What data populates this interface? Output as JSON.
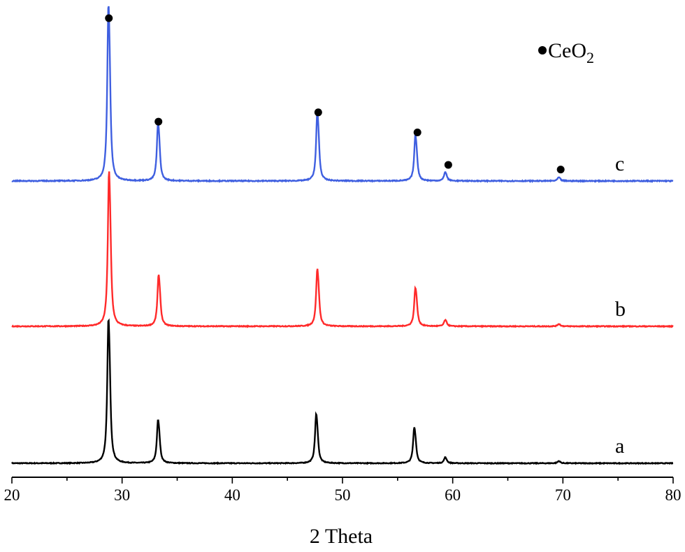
{
  "chart_data": {
    "type": "line",
    "title": "",
    "xlabel": "2 Theta",
    "ylabel": "",
    "xlim": [
      20,
      80
    ],
    "x_ticks": [
      "20",
      "30",
      "40",
      "50",
      "60",
      "70",
      "80"
    ],
    "grid": false,
    "y_axis_visible": false,
    "legend": {
      "marker": "filled-circle",
      "label_main": "CeO",
      "label_subscript": "2",
      "placement": "top-right"
    },
    "peak_markers": {
      "series": "c",
      "marker": "filled-circle",
      "x": [
        28.8,
        33.3,
        47.8,
        56.8,
        59.6,
        69.8
      ]
    },
    "series": [
      {
        "name": "a",
        "color": "#000000",
        "peaks": [
          {
            "x": 28.75,
            "height": 1.0
          },
          {
            "x": 33.25,
            "height": 0.3
          },
          {
            "x": 47.6,
            "height": 0.34
          },
          {
            "x": 56.5,
            "height": 0.25
          },
          {
            "x": 59.3,
            "height": 0.04
          },
          {
            "x": 69.6,
            "height": 0.015
          }
        ]
      },
      {
        "name": "b",
        "color": "#ff2a2a",
        "peaks": [
          {
            "x": 28.8,
            "height": 1.0
          },
          {
            "x": 33.3,
            "height": 0.33
          },
          {
            "x": 47.7,
            "height": 0.37
          },
          {
            "x": 56.6,
            "height": 0.25
          },
          {
            "x": 59.3,
            "height": 0.04
          },
          {
            "x": 69.6,
            "height": 0.015
          }
        ]
      },
      {
        "name": "c",
        "color": "#3f5fe0",
        "peaks": [
          {
            "x": 28.75,
            "height": 1.0
          },
          {
            "x": 33.25,
            "height": 0.33
          },
          {
            "x": 47.7,
            "height": 0.39
          },
          {
            "x": 56.6,
            "height": 0.26
          },
          {
            "x": 59.3,
            "height": 0.05
          },
          {
            "x": 69.6,
            "height": 0.02
          }
        ]
      }
    ]
  }
}
